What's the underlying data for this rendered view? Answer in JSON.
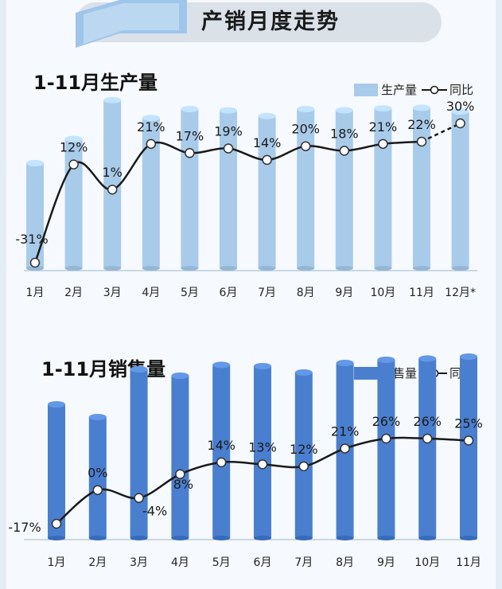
{
  "header": {
    "title": "产销月度走势"
  },
  "production": {
    "title": "1-11月生产量",
    "legend_bar": "生产量",
    "legend_line": "同比"
  },
  "sales": {
    "title": "1-11月销售量",
    "legend_bar": "销售量",
    "legend_line": "同比"
  },
  "colors": {
    "production_bar": "#a9cbea",
    "sales_bar": "#4a7fcf",
    "line": "#1a1a1a"
  },
  "chart_data": [
    {
      "type": "bar",
      "title": "1-11月生产量",
      "categories": [
        "1月",
        "2月",
        "3月",
        "4月",
        "5月",
        "6月",
        "7月",
        "8月",
        "9月",
        "10月",
        "11月",
        "12月*"
      ],
      "series": [
        {
          "name": "生产量",
          "type": "bar",
          "values": [
            165,
            203,
            264,
            236,
            250,
            248,
            239,
            250,
            248,
            251,
            252,
            246
          ]
        },
        {
          "name": "同比",
          "type": "line",
          "values": [
            -31,
            12,
            1,
            21,
            17,
            19,
            14,
            20,
            18,
            21,
            22,
            30
          ],
          "labels": [
            "-31%",
            "12%",
            "1%",
            "21%",
            "17%",
            "19%",
            "14%",
            "20%",
            "18%",
            "21%",
            "22%",
            "30%"
          ],
          "dashed_last_segment": true
        }
      ],
      "grid": false,
      "legend_position": "top-right"
    },
    {
      "type": "bar",
      "title": "1-11月销售量",
      "categories": [
        "1月",
        "2月",
        "3月",
        "4月",
        "5月",
        "6月",
        "7月",
        "8月",
        "9月",
        "10月",
        "11月"
      ],
      "series": [
        {
          "name": "销售量",
          "type": "bar",
          "values": [
            210,
            190,
            265,
            255,
            272,
            270,
            260,
            275,
            280,
            282,
            285
          ]
        },
        {
          "name": "同比",
          "type": "line",
          "values": [
            -17,
            0,
            -4,
            8,
            14,
            13,
            12,
            21,
            26,
            26,
            25
          ],
          "labels": [
            "-17%",
            "0%",
            "-4%",
            "8%",
            "14%",
            "13%",
            "12%",
            "21%",
            "26%",
            "26%",
            "25%"
          ]
        }
      ],
      "grid": false,
      "legend_position": "top-right"
    }
  ]
}
